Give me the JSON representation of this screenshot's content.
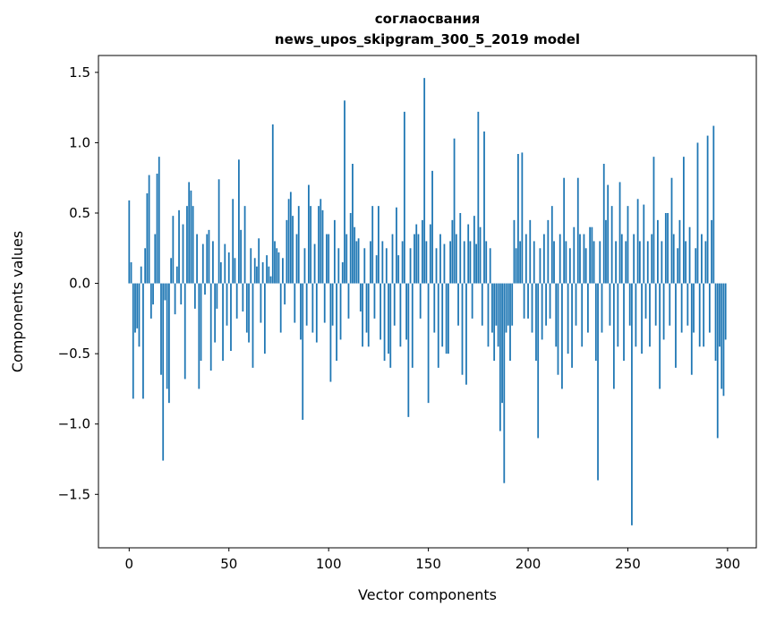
{
  "title_line1": "соглаосвания",
  "title_line2": "news_upos_skipgram_300_5_2019 model",
  "xlabel": "Vector components",
  "ylabel": "Components values",
  "chart_data": {
    "type": "bar",
    "title": "соглаосвания\nnews_upos_skipgram_300_5_2019 model",
    "xlabel": "Vector components",
    "ylabel": "Components values",
    "x_ticks": [
      0,
      50,
      100,
      150,
      200,
      250,
      300
    ],
    "y_ticks": [
      -1.5,
      -1.0,
      -0.5,
      0.0,
      0.5,
      1.0,
      1.5
    ],
    "xlim": [
      -15.4,
      314.4
    ],
    "ylim": [
      -1.88,
      1.62
    ],
    "grid": false,
    "legend": "none",
    "bar_color": "#1f77b4",
    "values": [
      0.59,
      0.15,
      -0.82,
      -0.35,
      -0.32,
      -0.45,
      0.12,
      -0.82,
      0.25,
      0.64,
      0.77,
      -0.25,
      -0.15,
      0.35,
      0.78,
      0.9,
      -0.65,
      -1.26,
      -0.12,
      -0.75,
      -0.85,
      0.18,
      0.48,
      -0.22,
      0.12,
      0.52,
      -0.15,
      0.42,
      -0.68,
      0.55,
      0.72,
      0.66,
      0.55,
      -0.18,
      0.35,
      -0.75,
      -0.55,
      0.28,
      -0.08,
      0.35,
      0.38,
      -0.62,
      0.3,
      -0.42,
      -0.18,
      0.74,
      0.15,
      -0.55,
      0.28,
      -0.3,
      0.22,
      -0.48,
      0.6,
      0.18,
      -0.25,
      0.88,
      0.38,
      -0.2,
      0.55,
      -0.35,
      -0.42,
      0.25,
      -0.6,
      0.18,
      0.12,
      0.32,
      -0.28,
      0.15,
      -0.5,
      0.2,
      0.12,
      0.05,
      1.13,
      0.3,
      0.25,
      0.22,
      -0.35,
      0.18,
      -0.15,
      0.45,
      0.6,
      0.65,
      0.48,
      -0.28,
      0.35,
      0.55,
      -0.4,
      -0.97,
      0.25,
      -0.3,
      0.7,
      0.55,
      -0.35,
      0.28,
      -0.42,
      0.55,
      0.6,
      0.52,
      -0.28,
      0.35,
      0.35,
      -0.7,
      -0.3,
      0.45,
      -0.55,
      0.25,
      -0.4,
      0.15,
      1.3,
      0.35,
      -0.25,
      0.5,
      0.85,
      0.4,
      0.3,
      0.32,
      -0.2,
      -0.45,
      0.25,
      -0.35,
      -0.45,
      0.3,
      0.55,
      -0.25,
      0.2,
      0.55,
      -0.4,
      0.3,
      -0.55,
      0.25,
      -0.5,
      -0.6,
      0.35,
      -0.3,
      0.54,
      0.2,
      -0.45,
      0.3,
      1.22,
      -0.4,
      -0.95,
      0.25,
      -0.6,
      0.35,
      0.42,
      0.35,
      -0.25,
      0.45,
      1.46,
      0.3,
      -0.85,
      0.42,
      0.8,
      -0.35,
      0.25,
      -0.6,
      0.35,
      -0.45,
      0.28,
      -0.5,
      -0.5,
      0.3,
      0.45,
      1.03,
      0.35,
      -0.3,
      0.5,
      -0.65,
      0.3,
      -0.72,
      0.42,
      0.3,
      -0.25,
      0.48,
      0.28,
      1.22,
      0.4,
      -0.3,
      1.08,
      0.3,
      -0.45,
      0.25,
      -0.35,
      -0.55,
      -0.3,
      -0.45,
      -1.05,
      -0.85,
      -1.42,
      -0.35,
      -0.3,
      -0.55,
      -0.3,
      0.45,
      0.25,
      0.92,
      0.3,
      0.93,
      -0.25,
      0.35,
      -0.25,
      0.45,
      -0.35,
      0.3,
      -0.55,
      -1.1,
      0.25,
      -0.4,
      0.35,
      -0.3,
      0.45,
      -0.25,
      0.55,
      0.3,
      -0.45,
      -0.65,
      0.35,
      -0.75,
      0.75,
      0.3,
      -0.5,
      0.25,
      -0.6,
      0.4,
      -0.3,
      0.75,
      0.35,
      -0.45,
      0.35,
      0.25,
      -0.35,
      0.4,
      0.4,
      0.3,
      -0.55,
      -1.4,
      0.3,
      -0.35,
      0.85,
      0.45,
      0.7,
      -0.3,
      0.55,
      -0.75,
      0.3,
      -0.45,
      0.72,
      0.35,
      -0.55,
      0.3,
      0.55,
      -0.3,
      -1.72,
      0.35,
      -0.45,
      0.6,
      0.3,
      -0.5,
      0.56,
      -0.25,
      0.3,
      -0.45,
      0.35,
      0.9,
      -0.3,
      0.45,
      -0.75,
      0.3,
      -0.4,
      0.5,
      0.5,
      -0.3,
      0.75,
      0.35,
      -0.6,
      0.25,
      0.45,
      -0.35,
      0.9,
      0.3,
      -0.3,
      0.4,
      -0.65,
      -0.35,
      0.25,
      1.0,
      -0.45,
      0.35,
      -0.45,
      0.3,
      1.05,
      -0.35,
      0.45,
      1.12,
      -0.55,
      -1.1,
      -0.45,
      -0.75,
      -0.8,
      -0.4
    ]
  }
}
